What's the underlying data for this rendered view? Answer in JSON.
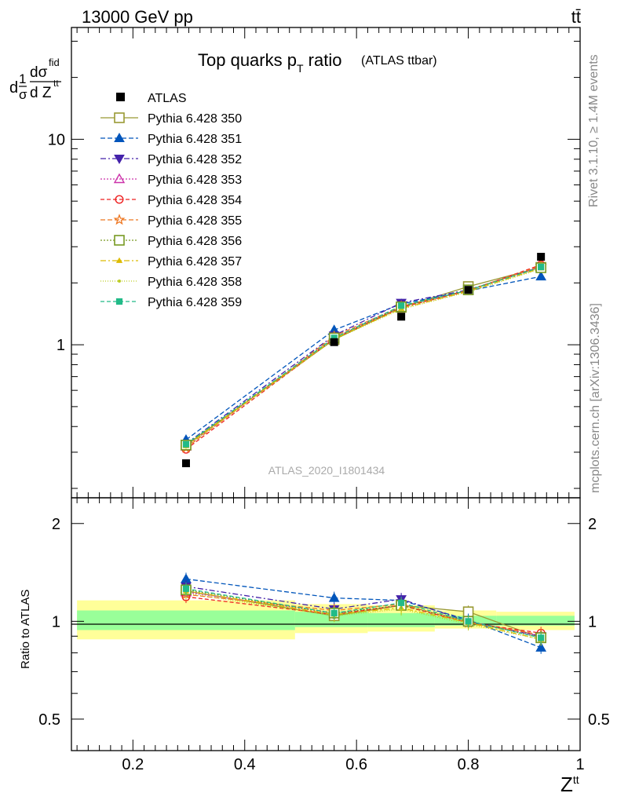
{
  "header": {
    "energy_label": "13000 GeV pp",
    "process_label": "tt̄"
  },
  "side_text": {
    "rivet": "Rivet 3.1.10, ≥ 1.4M events",
    "mcplots": "mcplots.cern.ch [arXiv:1306.3436]"
  },
  "analysis_id": "ATLAS_2020_I1801434",
  "colors": {
    "band_green": "#99ff99",
    "band_yellow": "#ffff99"
  },
  "chart_data": [
    {
      "type": "line",
      "title_main": "Top quarks p",
      "title_sub": "T",
      "title_tail": " ratio",
      "title_small": "(ATLAS ttbar)",
      "ylabel": {
        "d": "d",
        "one": "1",
        "sigma": "σ",
        "dsig": "dσ",
        "fid": "fid",
        "dZ": "d Z",
        "tt": "tt"
      },
      "xlim": [
        0.09,
        1.0
      ],
      "ylim": [
        0.18,
        35
      ],
      "yscale": "log",
      "ytick_labels": [
        {
          "value": 1,
          "label": "1"
        },
        {
          "value": 10,
          "label": "10"
        }
      ],
      "legend_placement": "top-left",
      "data": {
        "name": "ATLAS",
        "x": [
          0.295,
          0.56,
          0.68,
          0.8,
          0.93
        ],
        "y": [
          0.265,
          1.03,
          1.37,
          1.85,
          2.68
        ]
      },
      "series": [
        {
          "name": "Pythia 6.428 350",
          "color": "#999933",
          "marker": "square-open",
          "dash": "",
          "y": [
            0.325,
            1.06,
            1.52,
            1.92,
            2.38
          ]
        },
        {
          "name": "Pythia 6.428 351",
          "color": "#0055bb",
          "marker": "triangle-up",
          "dash": "6,3",
          "y": [
            0.345,
            1.18,
            1.58,
            1.83,
            2.15
          ]
        },
        {
          "name": "Pythia 6.428 352",
          "color": "#4422aa",
          "marker": "triangle-down",
          "dash": "7,3,2,3",
          "y": [
            0.33,
            1.11,
            1.6,
            1.85,
            2.4
          ]
        },
        {
          "name": "Pythia 6.428 353",
          "color": "#cc33aa",
          "marker": "triangle-open",
          "dash": "2,2",
          "y": [
            0.32,
            1.08,
            1.53,
            1.84,
            2.4
          ]
        },
        {
          "name": "Pythia 6.428 354",
          "color": "#ee2222",
          "marker": "circle-open",
          "dash": "5,3",
          "y": [
            0.31,
            1.07,
            1.52,
            1.83,
            2.45
          ]
        },
        {
          "name": "Pythia 6.428 355",
          "color": "#ee7722",
          "marker": "star-open",
          "dash": "6,3",
          "y": [
            0.315,
            1.1,
            1.54,
            1.84,
            2.42
          ]
        },
        {
          "name": "Pythia 6.428 356",
          "color": "#779922",
          "marker": "square-open",
          "dash": "2,2",
          "y": [
            0.325,
            1.08,
            1.53,
            1.85,
            2.37
          ]
        },
        {
          "name": "Pythia 6.428 357",
          "color": "#ddbb00",
          "marker": "tri-small",
          "dash": "7,3,2,3",
          "y": [
            0.322,
            1.07,
            1.5,
            1.82,
            2.36
          ]
        },
        {
          "name": "Pythia 6.428 358",
          "color": "#bbcc22",
          "marker": "dot",
          "dash": "1,2",
          "y": [
            0.318,
            1.06,
            1.49,
            1.81,
            2.34
          ]
        },
        {
          "name": "Pythia 6.428 359",
          "color": "#22bb88",
          "marker": "square-filled",
          "dash": "5,3",
          "y": [
            0.328,
            1.08,
            1.55,
            1.84,
            2.39
          ]
        }
      ]
    },
    {
      "type": "line",
      "ylabel": "Ratio to ATLAS",
      "xlabel": "Z",
      "xlabel_sup": "tt",
      "xlim": [
        0.09,
        1.0
      ],
      "ylim": [
        0.4,
        2.4
      ],
      "yscale": "log",
      "ytick_labels": [
        {
          "value": 0.5,
          "label": "0.5"
        },
        {
          "value": 1,
          "label": "1"
        },
        {
          "value": 2,
          "label": "2"
        }
      ],
      "xtick_labels": [
        {
          "value": 0.2,
          "label": "0.2"
        },
        {
          "value": 0.4,
          "label": "0.4"
        },
        {
          "value": 0.6,
          "label": "0.6"
        },
        {
          "value": 0.8,
          "label": "0.8"
        },
        {
          "value": 1.0,
          "label": "1"
        }
      ],
      "bands": [
        {
          "x0": 0.1,
          "x1": 0.49,
          "green": [
            0.94,
            1.08
          ],
          "yellow": [
            0.88,
            1.16
          ]
        },
        {
          "x0": 0.49,
          "x1": 0.62,
          "green": [
            0.96,
            1.07
          ],
          "yellow": [
            0.92,
            1.13
          ]
        },
        {
          "x0": 0.62,
          "x1": 0.74,
          "green": [
            0.96,
            1.06
          ],
          "yellow": [
            0.93,
            1.12
          ]
        },
        {
          "x0": 0.74,
          "x1": 0.85,
          "green": [
            0.97,
            1.04
          ],
          "yellow": [
            0.95,
            1.08
          ]
        },
        {
          "x0": 0.85,
          "x1": 0.99,
          "green": [
            0.97,
            1.04
          ],
          "yellow": [
            0.94,
            1.07
          ]
        }
      ],
      "series": [
        {
          "name": "Pythia 6.428 350",
          "y": [
            1.24,
            1.04,
            1.12,
            1.07,
            0.89
          ]
        },
        {
          "name": "Pythia 6.428 351",
          "y": [
            1.35,
            1.18,
            1.16,
            1.01,
            0.83
          ]
        },
        {
          "name": "Pythia 6.428 352",
          "y": [
            1.28,
            1.09,
            1.17,
            1.0,
            0.9
          ]
        },
        {
          "name": "Pythia 6.428 353",
          "y": [
            1.23,
            1.06,
            1.12,
            1.0,
            0.9
          ]
        },
        {
          "name": "Pythia 6.428 354",
          "y": [
            1.19,
            1.05,
            1.12,
            0.99,
            0.92
          ]
        },
        {
          "name": "Pythia 6.428 355",
          "y": [
            1.21,
            1.08,
            1.13,
            0.99,
            0.91
          ]
        },
        {
          "name": "Pythia 6.428 356",
          "y": [
            1.25,
            1.06,
            1.12,
            1.0,
            0.89
          ]
        },
        {
          "name": "Pythia 6.428 357",
          "y": [
            1.24,
            1.05,
            1.1,
            0.99,
            0.88
          ]
        },
        {
          "name": "Pythia 6.428 358",
          "y": [
            1.22,
            1.04,
            1.09,
            0.98,
            0.88
          ]
        },
        {
          "name": "Pythia 6.428 359",
          "y": [
            1.26,
            1.06,
            1.14,
            1.0,
            0.89
          ]
        }
      ]
    }
  ]
}
